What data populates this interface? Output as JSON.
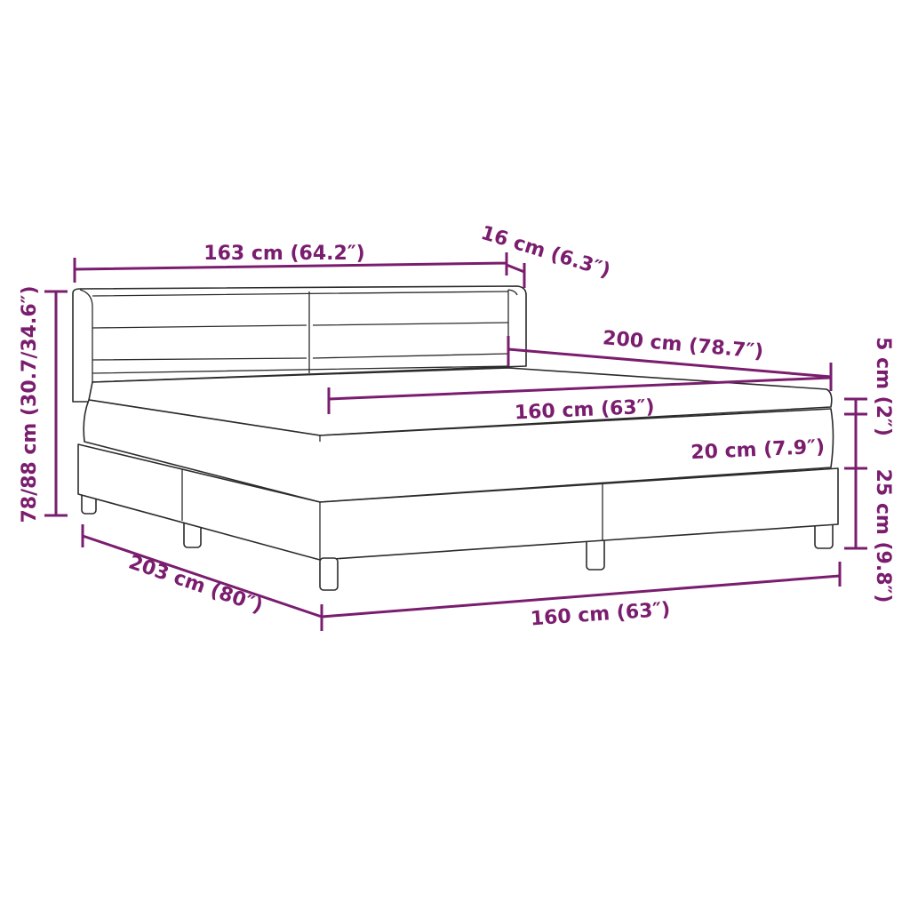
{
  "dimensions": {
    "headboard_width": "163 cm (64.2″)",
    "headboard_depth": "16 cm (6.3″)",
    "total_height": "78/88 cm (30.7/34.6″)",
    "mattress_length": "200 cm (78.7″)",
    "mattress_width": "160 cm (63″)",
    "topper_height": "5 cm (2″)",
    "mattress_height": "20 cm (7.9″)",
    "base_height": "25 cm (9.8″)",
    "bed_length": "203 cm (80″)",
    "bed_width": "160 cm (63″)"
  },
  "colors": {
    "dimension": "#7a1d6e",
    "outline": "#2b2b2b"
  }
}
